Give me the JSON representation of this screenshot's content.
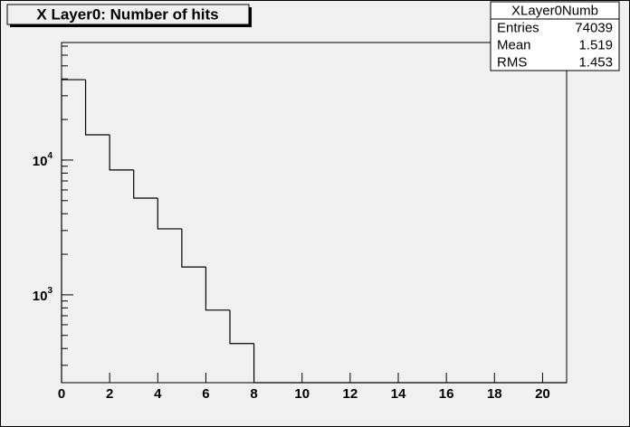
{
  "chart_data": {
    "type": "histogram",
    "title": "X Layer0: Number of hits",
    "bins": [
      0,
      1,
      2,
      3,
      4,
      5,
      6,
      7,
      8,
      9,
      10,
      11,
      12,
      13,
      14,
      15,
      16,
      17,
      18,
      19,
      20,
      21
    ],
    "values": [
      39500,
      15400,
      8440,
      5220,
      3090,
      1610,
      770,
      435,
      0,
      0,
      0,
      0,
      0,
      0,
      0,
      0,
      0,
      0,
      0,
      0,
      0
    ],
    "color": "#000000",
    "xlim": [
      0,
      21
    ],
    "xticks": [
      0,
      2,
      4,
      6,
      8,
      10,
      12,
      14,
      16,
      18,
      20
    ],
    "ylim": [
      223,
      74500
    ],
    "log_y": true,
    "yticks": [
      {
        "value": 1000,
        "label": "10",
        "exponent": "3"
      },
      {
        "value": 10000,
        "label": "10",
        "exponent": "4"
      }
    ],
    "yminorticks": [
      300,
      400,
      500,
      600,
      700,
      800,
      900,
      2000,
      3000,
      4000,
      5000,
      6000,
      7000,
      8000,
      9000,
      20000,
      30000,
      40000,
      50000,
      60000,
      70000
    ],
    "stats": {
      "title": "XLayer0Numb",
      "rows": [
        {
          "label": "Entries",
          "value": 74039
        },
        {
          "label": "Mean",
          "value": 1.519
        },
        {
          "label": "RMS",
          "value": 1.453
        }
      ]
    }
  }
}
